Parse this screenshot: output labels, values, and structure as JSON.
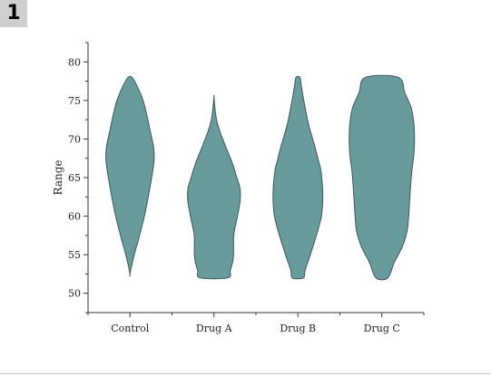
{
  "panel_label": "1",
  "colors": {
    "violin_fill": "#689b9b",
    "violin_stroke": "#3f5555",
    "axis": "#333333"
  },
  "chart_data": {
    "type": "violin",
    "title": "",
    "xlabel": "",
    "ylabel": "Range",
    "categories": [
      "Control",
      "Drug A",
      "Drug B",
      "Drug C"
    ],
    "ylim": [
      47.5,
      82.5
    ],
    "yticks": [
      50,
      55,
      60,
      65,
      70,
      75,
      80
    ],
    "grid": false,
    "series": [
      {
        "category": "Control",
        "min": 52.3,
        "max": 78,
        "profile": [
          [
            52.3,
            0.0
          ],
          [
            53,
            0.02
          ],
          [
            55,
            0.13
          ],
          [
            57,
            0.26
          ],
          [
            60,
            0.44
          ],
          [
            63,
            0.58
          ],
          [
            66,
            0.7
          ],
          [
            67.5,
            0.74
          ],
          [
            69,
            0.72
          ],
          [
            71,
            0.62
          ],
          [
            73,
            0.52
          ],
          [
            75,
            0.4
          ],
          [
            77,
            0.2
          ],
          [
            78,
            0.06
          ]
        ]
      },
      {
        "category": "Drug A",
        "min": 52,
        "max": 75.5,
        "profile": [
          [
            52,
            0.42
          ],
          [
            53,
            0.5
          ],
          [
            54,
            0.57
          ],
          [
            55,
            0.6
          ],
          [
            57,
            0.6
          ],
          [
            58,
            0.62
          ],
          [
            60,
            0.72
          ],
          [
            62,
            0.8
          ],
          [
            63.5,
            0.8
          ],
          [
            65,
            0.7
          ],
          [
            67,
            0.55
          ],
          [
            69,
            0.36
          ],
          [
            71,
            0.18
          ],
          [
            72.5,
            0.08
          ],
          [
            74,
            0.03
          ],
          [
            75.5,
            0.0
          ]
        ]
      },
      {
        "category": "Drug B",
        "min": 52,
        "max": 78,
        "profile": [
          [
            52,
            0.17
          ],
          [
            53,
            0.22
          ],
          [
            55,
            0.38
          ],
          [
            58,
            0.6
          ],
          [
            60,
            0.72
          ],
          [
            62,
            0.76
          ],
          [
            64,
            0.75
          ],
          [
            66,
            0.7
          ],
          [
            67,
            0.64
          ],
          [
            69,
            0.52
          ],
          [
            72,
            0.32
          ],
          [
            75,
            0.18
          ],
          [
            77,
            0.1
          ],
          [
            78,
            0.06
          ]
        ]
      },
      {
        "category": "Drug C",
        "min": 52,
        "max": 78,
        "profile": [
          [
            52,
            0.18
          ],
          [
            54,
            0.38
          ],
          [
            56,
            0.62
          ],
          [
            58,
            0.77
          ],
          [
            60,
            0.82
          ],
          [
            62,
            0.85
          ],
          [
            64,
            0.88
          ],
          [
            66,
            0.92
          ],
          [
            68,
            0.98
          ],
          [
            70,
            1.0
          ],
          [
            72,
            0.98
          ],
          [
            74,
            0.9
          ],
          [
            76,
            0.7
          ],
          [
            78,
            0.5
          ]
        ]
      }
    ]
  }
}
